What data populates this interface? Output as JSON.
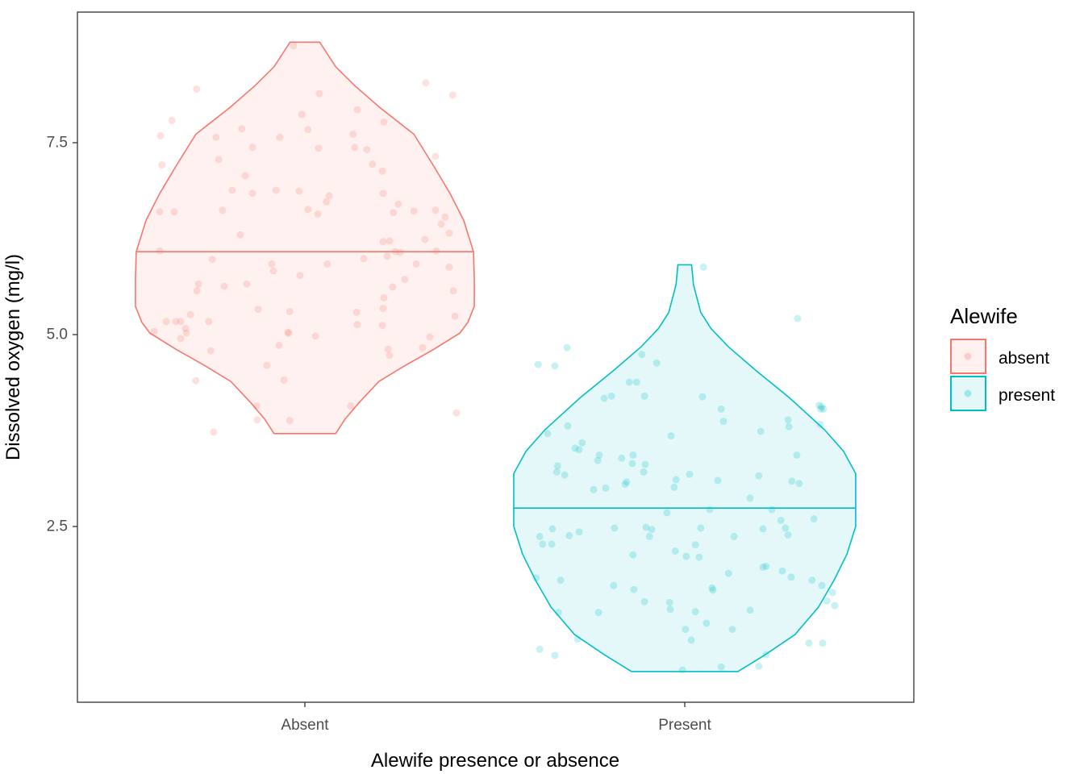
{
  "chart_data": {
    "type": "violin",
    "xlabel": "Alewife presence or absence",
    "ylabel": "Dissolved oxygen (mg/l)",
    "categories": [
      "Absent",
      "Present"
    ],
    "ylim": [
      0.1,
      9.1
    ],
    "yticks": [
      2.5,
      5.0,
      7.5
    ],
    "ytick_labels": [
      "2.5",
      "5.0",
      "7.5"
    ],
    "grid": false,
    "legend": {
      "title": "Alewife",
      "placement": "right",
      "entries": [
        {
          "label": "absent",
          "color": "#F8766D"
        },
        {
          "label": "present",
          "color": "#00BFC4"
        }
      ]
    },
    "series": [
      {
        "name": "absent",
        "category": "Absent",
        "color": "#F8766D",
        "median": 6.08,
        "density_profile": [
          [
            8.81,
            0.039
          ],
          [
            8.49,
            0.081
          ],
          [
            8.24,
            0.132
          ],
          [
            7.96,
            0.197
          ],
          [
            7.61,
            0.287
          ],
          [
            7.19,
            0.34
          ],
          [
            6.84,
            0.382
          ],
          [
            6.49,
            0.418
          ],
          [
            6.08,
            0.444
          ],
          [
            5.71,
            0.446
          ],
          [
            5.37,
            0.446
          ],
          [
            5.16,
            0.429
          ],
          [
            5.02,
            0.408
          ],
          [
            4.81,
            0.34
          ],
          [
            4.6,
            0.265
          ],
          [
            4.39,
            0.195
          ],
          [
            4.11,
            0.142
          ],
          [
            3.9,
            0.106
          ],
          [
            3.71,
            0.081
          ]
        ],
        "points": [
          [
            -0.03,
            8.76
          ],
          [
            -0.285,
            8.2
          ],
          [
            0.318,
            8.28
          ],
          [
            0.389,
            8.12
          ],
          [
            0.038,
            8.14
          ],
          [
            -0.35,
            7.79
          ],
          [
            -0.38,
            7.59
          ],
          [
            -0.376,
            7.21
          ],
          [
            -0.234,
            7.57
          ],
          [
            -0.166,
            7.68
          ],
          [
            -0.066,
            7.57
          ],
          [
            -0.008,
            7.87
          ],
          [
            0.008,
            7.67
          ],
          [
            0.036,
            7.43
          ],
          [
            -0.138,
            7.44
          ],
          [
            -0.227,
            7.28
          ],
          [
            0.138,
            7.93
          ],
          [
            0.208,
            7.77
          ],
          [
            0.127,
            7.61
          ],
          [
            0.131,
            7.44
          ],
          [
            0.163,
            7.41
          ],
          [
            0.178,
            7.22
          ],
          [
            0.204,
            7.13
          ],
          [
            0.344,
            7.32
          ],
          [
            -0.157,
            7.07
          ],
          [
            -0.191,
            6.88
          ],
          [
            -0.138,
            6.84
          ],
          [
            -0.076,
            6.88
          ],
          [
            -0.015,
            6.87
          ],
          [
            0.064,
            6.81
          ],
          [
            0.057,
            6.73
          ],
          [
            0.008,
            6.63
          ],
          [
            0.034,
            6.57
          ],
          [
            0.206,
            6.84
          ],
          [
            0.246,
            6.7
          ],
          [
            0.233,
            6.59
          ],
          [
            0.287,
            6.61
          ],
          [
            0.344,
            6.62
          ],
          [
            0.359,
            6.44
          ],
          [
            0.369,
            6.53
          ],
          [
            0.38,
            6.32
          ],
          [
            -0.382,
            6.6
          ],
          [
            -0.344,
            6.6
          ],
          [
            -0.217,
            6.62
          ],
          [
            -0.17,
            6.3
          ],
          [
            -0.382,
            6.09
          ],
          [
            0.206,
            6.21
          ],
          [
            0.223,
            6.22
          ],
          [
            0.316,
            6.24
          ],
          [
            0.238,
            6.08
          ],
          [
            0.217,
            6.02
          ],
          [
            0.251,
            6.07
          ],
          [
            0.346,
            6.09
          ],
          [
            0.155,
            5.99
          ],
          [
            0.059,
            5.92
          ],
          [
            -0.087,
            5.92
          ],
          [
            -0.083,
            5.83
          ],
          [
            -0.244,
            5.98
          ],
          [
            0.293,
            5.92
          ],
          [
            0.38,
            5.88
          ],
          [
            -0.28,
            5.66
          ],
          [
            -0.284,
            5.57
          ],
          [
            -0.212,
            5.63
          ],
          [
            -0.153,
            5.66
          ],
          [
            -0.013,
            5.77
          ],
          [
            0.263,
            5.72
          ],
          [
            0.231,
            5.62
          ],
          [
            0.391,
            5.57
          ],
          [
            -0.123,
            5.33
          ],
          [
            -0.04,
            5.3
          ],
          [
            0.136,
            5.29
          ],
          [
            0.206,
            5.34
          ],
          [
            0.208,
            5.48
          ],
          [
            -0.301,
            5.26
          ],
          [
            -0.365,
            5.17
          ],
          [
            -0.34,
            5.17
          ],
          [
            -0.327,
            5.17
          ],
          [
            -0.253,
            5.17
          ],
          [
            -0.314,
            5.08
          ],
          [
            -0.312,
            5.02
          ],
          [
            -0.327,
            4.95
          ],
          [
            -0.397,
            5.04
          ],
          [
            0.138,
            5.13
          ],
          [
            0.204,
            5.12
          ],
          [
            0.395,
            5.24
          ],
          [
            -0.042,
            5.02
          ],
          [
            -0.045,
            5.03
          ],
          [
            0.028,
            4.98
          ],
          [
            0.329,
            4.97
          ],
          [
            -0.068,
            4.86
          ],
          [
            -0.248,
            4.79
          ],
          [
            0.219,
            4.81
          ],
          [
            0.223,
            4.73
          ],
          [
            0.31,
            4.83
          ],
          [
            -0.1,
            4.6
          ],
          [
            -0.055,
            4.41
          ],
          [
            -0.287,
            4.4
          ],
          [
            -0.127,
            4.07
          ],
          [
            0.121,
            4.07
          ],
          [
            -0.125,
            3.89
          ],
          [
            -0.04,
            3.88
          ],
          [
            -0.24,
            3.73
          ],
          [
            0.399,
            3.98
          ]
        ]
      },
      {
        "name": "present",
        "category": "Present",
        "color": "#00BFC4",
        "median": 2.74,
        "density_profile": [
          [
            5.91,
            0.018
          ],
          [
            5.65,
            0.023
          ],
          [
            5.29,
            0.042
          ],
          [
            5.08,
            0.069
          ],
          [
            4.84,
            0.115
          ],
          [
            4.53,
            0.188
          ],
          [
            4.18,
            0.275
          ],
          [
            3.76,
            0.368
          ],
          [
            3.48,
            0.418
          ],
          [
            3.19,
            0.45
          ],
          [
            2.74,
            0.45
          ],
          [
            2.5,
            0.45
          ],
          [
            2.14,
            0.427
          ],
          [
            1.8,
            0.393
          ],
          [
            1.45,
            0.352
          ],
          [
            1.09,
            0.29
          ],
          [
            0.82,
            0.209
          ],
          [
            0.61,
            0.14
          ]
        ],
        "points": [
          [
            0.049,
            5.88
          ],
          [
            0.297,
            5.21
          ],
          [
            -0.31,
            4.83
          ],
          [
            -0.386,
            4.61
          ],
          [
            -0.342,
            4.59
          ],
          [
            -0.113,
            4.74
          ],
          [
            -0.074,
            4.63
          ],
          [
            -0.146,
            4.38
          ],
          [
            -0.127,
            4.38
          ],
          [
            -0.106,
            4.2
          ],
          [
            0.047,
            4.19
          ],
          [
            -0.193,
            4.2
          ],
          [
            -0.212,
            4.17
          ],
          [
            0.096,
            4.03
          ],
          [
            0.102,
            3.87
          ],
          [
            0.354,
            4.08
          ],
          [
            0.36,
            4.06
          ],
          [
            0.358,
            4.03
          ],
          [
            0.365,
            4.03
          ],
          [
            0.357,
            3.83
          ],
          [
            0.272,
            3.89
          ],
          [
            0.274,
            3.8
          ],
          [
            0.2,
            3.74
          ],
          [
            -0.361,
            3.71
          ],
          [
            -0.308,
            3.81
          ],
          [
            -0.036,
            3.68
          ],
          [
            0.295,
            3.43
          ],
          [
            -0.27,
            3.59
          ],
          [
            -0.289,
            3.52
          ],
          [
            -0.278,
            3.5
          ],
          [
            -0.225,
            3.43
          ],
          [
            -0.229,
            3.36
          ],
          [
            -0.136,
            3.43
          ],
          [
            -0.138,
            3.32
          ],
          [
            -0.166,
            3.39
          ],
          [
            -0.104,
            3.31
          ],
          [
            -0.108,
            3.21
          ],
          [
            -0.335,
            3.29
          ],
          [
            -0.337,
            3.21
          ],
          [
            -0.316,
            3.17
          ],
          [
            -0.153,
            3.08
          ],
          [
            -0.157,
            3.05
          ],
          [
            -0.24,
            2.98
          ],
          [
            -0.208,
            3.0
          ],
          [
            -0.023,
            3.11
          ],
          [
            0.013,
            3.18
          ],
          [
            -0.028,
            3.01
          ],
          [
            0.087,
            3.1
          ],
          [
            0.195,
            3.16
          ],
          [
            0.282,
            3.09
          ],
          [
            0.301,
            3.06
          ],
          [
            0.172,
            2.87
          ],
          [
            0.229,
            2.72
          ],
          [
            -0.047,
            2.68
          ],
          [
            0.066,
            2.72
          ],
          [
            0.253,
            2.58
          ],
          [
            0.34,
            2.6
          ],
          [
            0.265,
            2.48
          ],
          [
            0.272,
            2.39
          ],
          [
            0.206,
            2.47
          ],
          [
            -0.185,
            2.48
          ],
          [
            -0.102,
            2.49
          ],
          [
            -0.087,
            2.46
          ],
          [
            -0.093,
            2.37
          ],
          [
            0.042,
            2.48
          ],
          [
            0.13,
            2.37
          ],
          [
            -0.382,
            2.37
          ],
          [
            -0.348,
            2.47
          ],
          [
            -0.304,
            2.38
          ],
          [
            -0.278,
            2.43
          ],
          [
            -0.374,
            2.27
          ],
          [
            -0.35,
            2.27
          ],
          [
            0.028,
            2.26
          ],
          [
            -0.025,
            2.18
          ],
          [
            0.004,
            2.11
          ],
          [
            0.038,
            2.1
          ],
          [
            -0.136,
            2.13
          ],
          [
            0.206,
            1.97
          ],
          [
            0.214,
            1.98
          ],
          [
            0.257,
            1.92
          ],
          [
            0.28,
            1.84
          ],
          [
            0.335,
            1.8
          ],
          [
            0.361,
            1.73
          ],
          [
            -0.391,
            1.83
          ],
          [
            -0.327,
            1.8
          ],
          [
            -0.187,
            1.73
          ],
          [
            -0.134,
            1.68
          ],
          [
            0.072,
            1.7
          ],
          [
            0.074,
            1.67
          ],
          [
            0.115,
            1.89
          ],
          [
            0.389,
            1.64
          ],
          [
            0.374,
            1.53
          ],
          [
            0.395,
            1.47
          ],
          [
            -0.333,
            1.38
          ],
          [
            -0.106,
            1.52
          ],
          [
            -0.04,
            1.51
          ],
          [
            -0.038,
            1.42
          ],
          [
            0.028,
            1.39
          ],
          [
            0.172,
            1.41
          ],
          [
            -0.227,
            1.38
          ],
          [
            0.057,
            1.24
          ],
          [
            0.125,
            1.16
          ],
          [
            0.002,
            1.16
          ],
          [
            0.017,
            1.02
          ],
          [
            -0.282,
            1.03
          ],
          [
            -0.382,
            0.9
          ],
          [
            -0.342,
            0.82
          ],
          [
            0.327,
            0.98
          ],
          [
            0.363,
            0.98
          ],
          [
            0.214,
            0.83
          ],
          [
            0.195,
            0.68
          ],
          [
            0.096,
            0.67
          ],
          [
            -0.006,
            0.63
          ]
        ]
      }
    ]
  }
}
